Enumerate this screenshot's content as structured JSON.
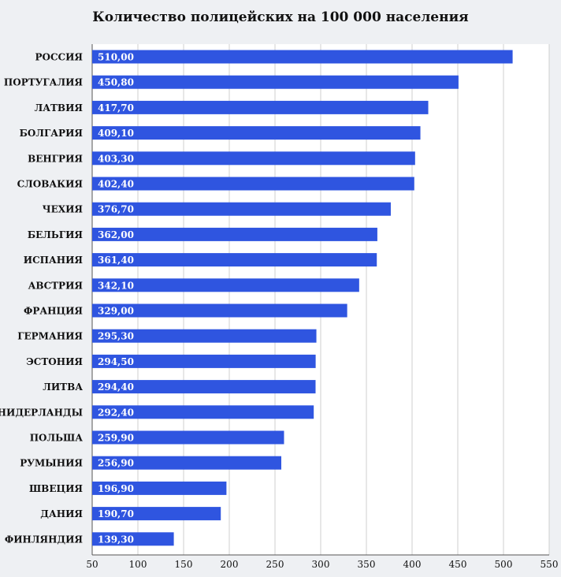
{
  "chart_data": {
    "type": "bar",
    "orientation": "horizontal",
    "title": "Количество полицейских на 100 000 населения",
    "xlabel": "",
    "ylabel": "",
    "categories": [
      "РОССИЯ",
      "ПОРТУГАЛИЯ",
      "ЛАТВИЯ",
      "БОЛГАРИЯ",
      "ВЕНГРИЯ",
      "СЛОВАКИЯ",
      "ЧЕХИЯ",
      "БЕЛЬГИЯ",
      "ИСПАНИЯ",
      "АВСТРИЯ",
      "ФРАНЦИЯ",
      "ГЕРМАНИЯ",
      "ЭСТОНИЯ",
      "ЛИТВА",
      "НИДЕРЛАНДЫ",
      "ПОЛЬША",
      "РУМЫНИЯ",
      "ШВЕЦИЯ",
      "ДАНИЯ",
      "ФИНЛЯНДИЯ"
    ],
    "values": [
      510.0,
      450.8,
      417.7,
      409.1,
      403.3,
      402.4,
      376.7,
      362.0,
      361.4,
      342.1,
      329.0,
      295.3,
      294.5,
      294.4,
      292.4,
      259.9,
      256.9,
      196.9,
      190.7,
      139.3
    ],
    "value_labels": [
      "510,00",
      "450,80",
      "417,70",
      "409,10",
      "403,30",
      "402,40",
      "376,70",
      "362,00",
      "361,40",
      "342,10",
      "329,00",
      "295,30",
      "294,50",
      "294,40",
      "292,40",
      "259,90",
      "256,90",
      "196,90",
      "190,70",
      "139,30"
    ],
    "xlim": [
      50,
      550
    ],
    "xticks": [
      50,
      100,
      150,
      200,
      250,
      300,
      350,
      400,
      450,
      500,
      550
    ],
    "grid": "vertical",
    "legend": "none",
    "colors": {
      "bar": "#2f55e0",
      "value_label": "#ffffff",
      "grid": "#cfcfcf",
      "axis": "#555555",
      "text": "#111111"
    }
  }
}
